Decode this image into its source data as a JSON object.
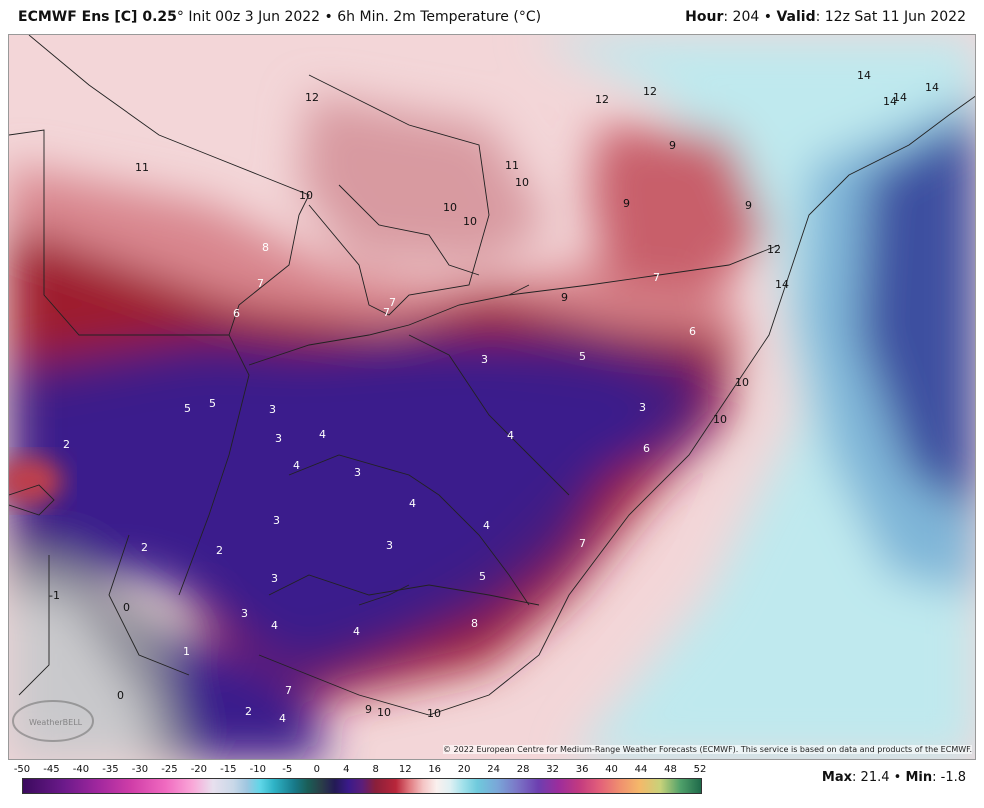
{
  "header": {
    "model_title": "ECMWF Ens [C] 0.25",
    "degree_mark": "°",
    "init_text": "Init 00z 3 Jun 2022",
    "separator": "•",
    "product": "6h Min. 2m Temperature (°C)",
    "hour_label": "Hour",
    "hour_value": ": 204",
    "valid_label": "Valid",
    "valid_value": ": 12z Sat 11 Jun 2022"
  },
  "copyright": "© 2022 European Centre for Medium-Range Weather Forecasts (ECMWF). This service is based on data and products of the ECMWF.",
  "colorbar": {
    "ticks": [
      "-50",
      "-45",
      "-40",
      "-35",
      "-30",
      "-25",
      "-20",
      "-15",
      "-10",
      "-5",
      "0",
      "4",
      "8",
      "12",
      "16",
      "20",
      "24",
      "28",
      "32",
      "36",
      "40",
      "44",
      "48",
      "52"
    ]
  },
  "stats": {
    "max_label": "Max",
    "max_value": ": 21.4",
    "sep": "•",
    "min_label": "Min",
    "min_value": ": -1.8"
  },
  "map_labels": [
    "14",
    "14",
    "14",
    "14",
    "12",
    "12",
    "12",
    "9",
    "9",
    "9",
    "11",
    "11",
    "10",
    "10",
    "10",
    "10",
    "8",
    "7",
    "7",
    "7",
    "6",
    "7",
    "9",
    "6",
    "3",
    "5",
    "5",
    "5",
    "3",
    "3",
    "4",
    "4",
    "2",
    "3",
    "6",
    "10",
    "10",
    "4",
    "3",
    "4",
    "7",
    "2",
    "2",
    "3",
    "3",
    "5",
    "-1",
    "0",
    "3",
    "4",
    "4",
    "8",
    "1",
    "0",
    "3",
    "2",
    "4",
    "7",
    "9",
    "10",
    "10",
    "4",
    "12",
    "14"
  ],
  "colors": {
    "cold_purple": "#3a1c8c",
    "warm_red": "#9e1c2e",
    "pale_pink": "#f3d6d8",
    "ocean_cyan": "#bfe9ee",
    "ocean_blue": "#3d5ba8"
  },
  "watermark": "WeatherBELL"
}
